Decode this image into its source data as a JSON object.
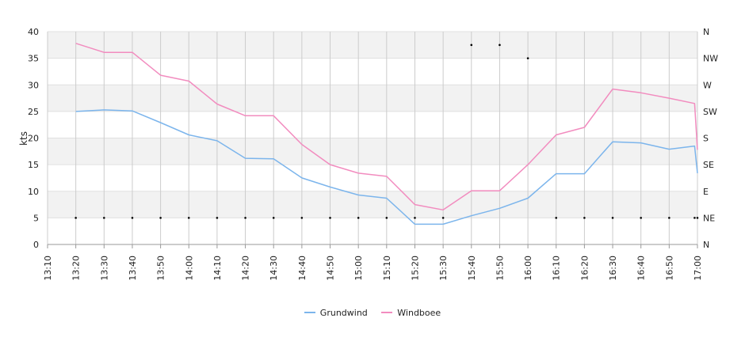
{
  "chart_data": {
    "type": "line",
    "ylabel": "kts",
    "ylim": [
      0,
      40
    ],
    "yticks": [
      "0",
      "5",
      "10",
      "15",
      "20",
      "25",
      "30",
      "35",
      "40"
    ],
    "right_axis_labels": [
      "N",
      "NE",
      "E",
      "SE",
      "S",
      "SW",
      "W",
      "NW",
      "N"
    ],
    "x_tick_labels": [
      "13:10",
      "13:20",
      "13:30",
      "13:40",
      "13:50",
      "14:00",
      "14:10",
      "14:20",
      "14:30",
      "14:40",
      "14:50",
      "15:00",
      "15:10",
      "15:20",
      "15:30",
      "15:40",
      "15:50",
      "16:00",
      "16:10",
      "16:20",
      "16:30",
      "16:40",
      "16:50",
      "17:00"
    ],
    "x_range": [
      "13:10",
      "17:00"
    ],
    "grid": true,
    "legend_position": "bottom",
    "series": [
      {
        "name": "Grundwind",
        "color": "#7cb5ec",
        "x": [
          "13:20",
          "13:30",
          "13:40",
          "13:50",
          "14:00",
          "14:10",
          "14:20",
          "14:30",
          "14:40",
          "14:50",
          "15:00",
          "15:10",
          "15:20",
          "15:30",
          "15:40",
          "15:50",
          "16:00",
          "16:10",
          "16:20",
          "16:30",
          "16:40",
          "16:50",
          "16:59",
          "17:00"
        ],
        "values": [
          25.0,
          25.3,
          25.1,
          22.9,
          20.6,
          19.5,
          16.2,
          16.1,
          12.5,
          10.8,
          9.3,
          8.7,
          3.8,
          3.8,
          5.4,
          6.8,
          8.7,
          13.3,
          13.3,
          19.3,
          19.1,
          17.9,
          18.5,
          13.4
        ]
      },
      {
        "name": "Windboee",
        "color": "#f28cbf",
        "x": [
          "13:20",
          "13:30",
          "13:40",
          "13:50",
          "14:00",
          "14:10",
          "14:20",
          "14:30",
          "14:40",
          "14:50",
          "15:00",
          "15:10",
          "15:20",
          "15:30",
          "15:40",
          "15:50",
          "16:00",
          "16:10",
          "16:20",
          "16:30",
          "16:40",
          "16:50",
          "16:59",
          "17:00"
        ],
        "values": [
          37.8,
          36.1,
          36.1,
          31.8,
          30.7,
          26.4,
          24.2,
          24.2,
          18.8,
          15.0,
          13.4,
          12.8,
          7.5,
          6.5,
          10.1,
          10.1,
          15.0,
          20.6,
          22.0,
          29.2,
          28.5,
          27.5,
          26.5,
          17.8
        ]
      },
      {
        "name": "direction",
        "color": "#000000",
        "x": [
          "13:20",
          "13:30",
          "13:40",
          "13:50",
          "14:00",
          "14:10",
          "14:20",
          "14:30",
          "14:40",
          "14:50",
          "15:00",
          "15:10",
          "15:20",
          "15:30",
          "15:40",
          "15:50",
          "16:00",
          "16:10",
          "16:20",
          "16:30",
          "16:40",
          "16:50",
          "16:59",
          "17:00"
        ],
        "values": [
          "NE",
          "NE",
          "NE",
          "NE",
          "NE",
          "NE",
          "NE",
          "NE",
          "NE",
          "NE",
          "NE",
          "NE",
          "NE",
          "NE",
          "NNW",
          "NNW",
          "NW",
          "NE",
          "NE",
          "NE",
          "NE",
          "NE",
          "NE",
          "NE"
        ]
      }
    ],
    "legend": [
      {
        "label": "Grundwind",
        "color": "#7cb5ec"
      },
      {
        "label": "Windboee",
        "color": "#f28cbf"
      }
    ]
  }
}
